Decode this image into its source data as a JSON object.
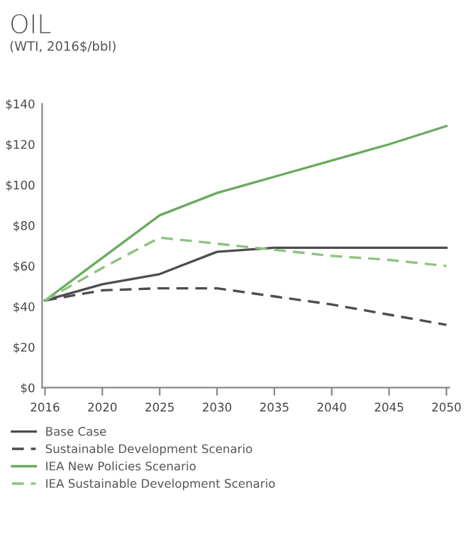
{
  "chart_data": {
    "type": "line",
    "title": "OIL",
    "subtitle": "(WTI, 2016$/bbl)",
    "categories": [
      "2016",
      "2020",
      "2025",
      "2030",
      "2035",
      "2040",
      "2045",
      "2050"
    ],
    "series": [
      {
        "name": "Base Case",
        "color": "#4d4d4f",
        "line_style": "solid",
        "values": [
          43,
          51,
          56,
          67,
          69,
          69,
          69,
          69
        ]
      },
      {
        "name": "Sustainable Development Scenario",
        "color": "#4d4d4f",
        "line_style": "dashed",
        "values": [
          43,
          48,
          49,
          49,
          45,
          41,
          36,
          31
        ]
      },
      {
        "name": "IEA New Policies Scenario",
        "color": "#6aaa5f",
        "line_style": "solid",
        "values": [
          43,
          64,
          85,
          96,
          104,
          112,
          120,
          129
        ]
      },
      {
        "name": "IEA Sustainable Development Scenario",
        "color": "#8cc47e",
        "line_style": "dashed",
        "values": [
          43,
          59,
          74,
          71,
          68,
          65,
          63,
          60
        ]
      }
    ],
    "ylim": [
      0,
      140
    ],
    "yticks": [
      {
        "value": 0,
        "label": "$0"
      },
      {
        "value": 20,
        "label": "$20"
      },
      {
        "value": 40,
        "label": "$40"
      },
      {
        "value": 60,
        "label": "$60"
      },
      {
        "value": 80,
        "label": "$80"
      },
      {
        "value": 100,
        "label": "$100"
      },
      {
        "value": 120,
        "label": "$120"
      },
      {
        "value": 140,
        "label": "$140"
      }
    ],
    "grid": false,
    "legend": "bottom",
    "marker": "none"
  }
}
